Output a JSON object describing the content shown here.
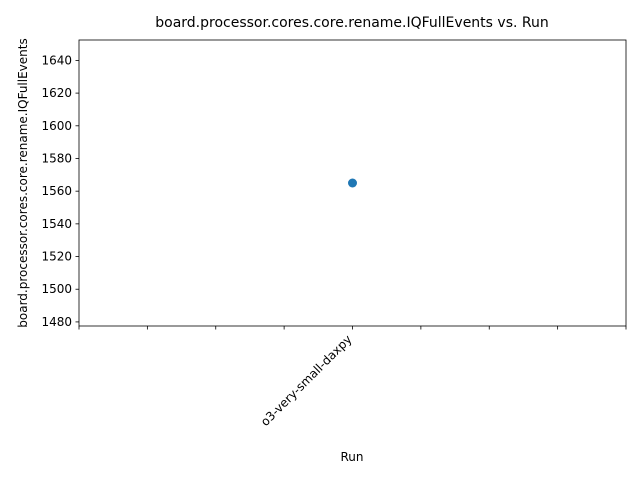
{
  "chart_data": {
    "type": "scatter",
    "title": "board.processor.cores.core.rename.IQFullEvents vs. Run",
    "xlabel": "Run",
    "ylabel": "board.processor.cores.core.rename.IQFullEvents",
    "categories": [
      "o3-very-small-daxpy"
    ],
    "series": [
      {
        "x": [
          "o3-very-small-daxpy"
        ],
        "values": [
          1565
        ]
      }
    ],
    "xlim": [
      -4,
      4
    ],
    "ylim": [
      1477.5,
      1652.5
    ],
    "y_ticks": [
      1480,
      1500,
      1520,
      1540,
      1560,
      1580,
      1600,
      1620,
      1640
    ],
    "x_ticks": [
      -4,
      -3,
      -2,
      -1,
      0,
      1,
      2,
      3,
      4
    ],
    "x_tick_labels": [
      "",
      "",
      "",
      "",
      "o3-very-small-daxpy",
      "",
      "",
      "",
      ""
    ],
    "grid": false,
    "marker_color": "#1f77b4"
  }
}
